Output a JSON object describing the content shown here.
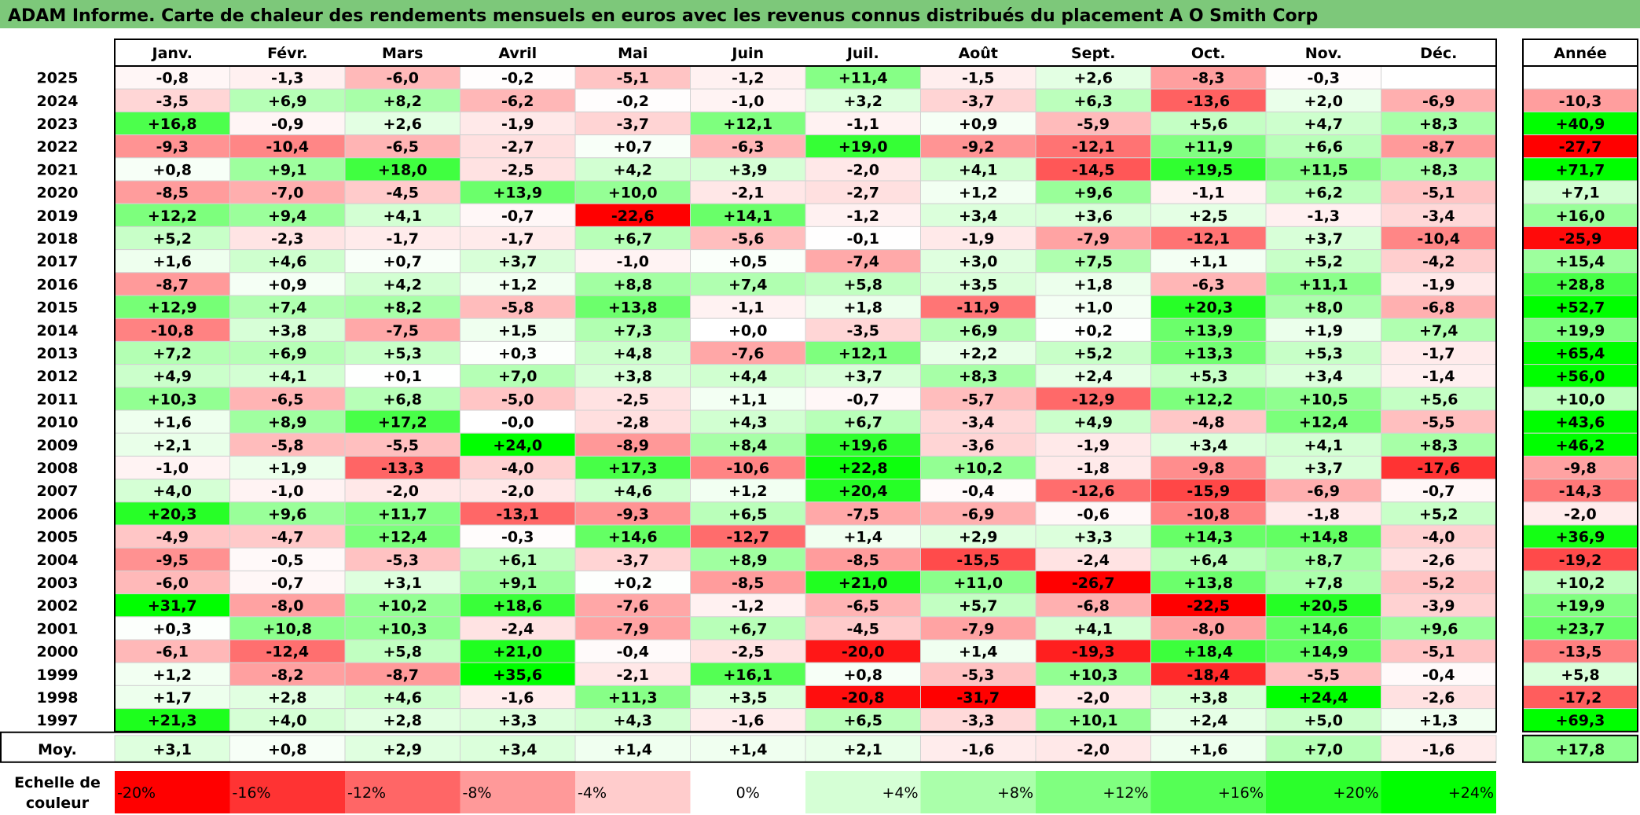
{
  "title": "ADAM Informe. Carte de chaleur des rendements mensuels en euros avec les revenus connus distribués du placement A O Smith Corp",
  "chart_data": {
    "type": "heatmap",
    "columns": [
      "Janv.",
      "Févr.",
      "Mars",
      "Avril",
      "Mai",
      "Juin",
      "Juil.",
      "Août",
      "Sept.",
      "Oct.",
      "Nov.",
      "Déc."
    ],
    "annual_label": "Année",
    "rows": [
      {
        "year": "2025",
        "values": [
          "-0,8",
          "-1,3",
          "-6,0",
          "-0,2",
          "-5,1",
          "-1,2",
          "+11,4",
          "-1,5",
          "+2,6",
          "-8,3",
          "-0,3",
          ""
        ],
        "annual": ""
      },
      {
        "year": "2024",
        "values": [
          "-3,5",
          "+6,9",
          "+8,2",
          "-6,2",
          "-0,2",
          "-1,0",
          "+3,2",
          "-3,7",
          "+6,3",
          "-13,6",
          "+2,0",
          "-6,9"
        ],
        "annual": "-10,3"
      },
      {
        "year": "2023",
        "values": [
          "+16,8",
          "-0,9",
          "+2,6",
          "-1,9",
          "-3,7",
          "+12,1",
          "-1,1",
          "+0,9",
          "-5,9",
          "+5,6",
          "+4,7",
          "+8,3"
        ],
        "annual": "+40,9"
      },
      {
        "year": "2022",
        "values": [
          "-9,3",
          "-10,4",
          "-6,5",
          "-2,7",
          "+0,7",
          "-6,3",
          "+19,0",
          "-9,2",
          "-12,1",
          "+11,9",
          "+6,6",
          "-8,7"
        ],
        "annual": "-27,7"
      },
      {
        "year": "2021",
        "values": [
          "+0,8",
          "+9,1",
          "+18,0",
          "-2,5",
          "+4,2",
          "+3,9",
          "-2,0",
          "+4,1",
          "-14,5",
          "+19,5",
          "+11,5",
          "+8,3"
        ],
        "annual": "+71,7"
      },
      {
        "year": "2020",
        "values": [
          "-8,5",
          "-7,0",
          "-4,5",
          "+13,9",
          "+10,0",
          "-2,1",
          "-2,7",
          "+1,2",
          "+9,6",
          "-1,1",
          "+6,2",
          "-5,1"
        ],
        "annual": "+7,1"
      },
      {
        "year": "2019",
        "values": [
          "+12,2",
          "+9,4",
          "+4,1",
          "-0,7",
          "-22,6",
          "+14,1",
          "-1,2",
          "+3,4",
          "+3,6",
          "+2,5",
          "-1,3",
          "-3,4"
        ],
        "annual": "+16,0"
      },
      {
        "year": "2018",
        "values": [
          "+5,2",
          "-2,3",
          "-1,7",
          "-1,7",
          "+6,7",
          "-5,6",
          "-0,1",
          "-1,9",
          "-7,9",
          "-12,1",
          "+3,7",
          "-10,4"
        ],
        "annual": "-25,9"
      },
      {
        "year": "2017",
        "values": [
          "+1,6",
          "+4,6",
          "+0,7",
          "+3,7",
          "-1,0",
          "+0,5",
          "-7,4",
          "+3,0",
          "+7,5",
          "+1,1",
          "+5,2",
          "-4,2"
        ],
        "annual": "+15,4"
      },
      {
        "year": "2016",
        "values": [
          "-8,7",
          "+0,9",
          "+4,2",
          "+1,2",
          "+8,8",
          "+7,4",
          "+5,8",
          "+3,5",
          "+1,8",
          "-6,3",
          "+11,1",
          "-1,9"
        ],
        "annual": "+28,8"
      },
      {
        "year": "2015",
        "values": [
          "+12,9",
          "+7,4",
          "+8,2",
          "-5,8",
          "+13,8",
          "-1,1",
          "+1,8",
          "-11,9",
          "+1,0",
          "+20,3",
          "+8,0",
          "-6,8"
        ],
        "annual": "+52,7"
      },
      {
        "year": "2014",
        "values": [
          "-10,8",
          "+3,8",
          "-7,5",
          "+1,5",
          "+7,3",
          "+0,0",
          "-3,5",
          "+6,9",
          "+0,2",
          "+13,9",
          "+1,9",
          "+7,4"
        ],
        "annual": "+19,9"
      },
      {
        "year": "2013",
        "values": [
          "+7,2",
          "+6,9",
          "+5,3",
          "+0,3",
          "+4,8",
          "-7,6",
          "+12,1",
          "+2,2",
          "+5,2",
          "+13,3",
          "+5,3",
          "-1,7"
        ],
        "annual": "+65,4"
      },
      {
        "year": "2012",
        "values": [
          "+4,9",
          "+4,1",
          "+0,1",
          "+7,0",
          "+3,8",
          "+4,4",
          "+3,7",
          "+8,3",
          "+2,4",
          "+5,3",
          "+3,4",
          "-1,4"
        ],
        "annual": "+56,0"
      },
      {
        "year": "2011",
        "values": [
          "+10,3",
          "-6,5",
          "+6,8",
          "-5,0",
          "-2,5",
          "+1,1",
          "-0,7",
          "-5,7",
          "-12,9",
          "+12,2",
          "+10,5",
          "+5,6"
        ],
        "annual": "+10,0"
      },
      {
        "year": "2010",
        "values": [
          "+1,6",
          "+8,9",
          "+17,2",
          "-0,0",
          "-2,8",
          "+4,3",
          "+6,7",
          "-3,4",
          "+4,9",
          "-4,8",
          "+12,4",
          "-5,5"
        ],
        "annual": "+43,6"
      },
      {
        "year": "2009",
        "values": [
          "+2,1",
          "-5,8",
          "-5,5",
          "+24,0",
          "-8,9",
          "+8,4",
          "+19,6",
          "-3,6",
          "-1,9",
          "+3,4",
          "+4,1",
          "+8,3"
        ],
        "annual": "+46,2"
      },
      {
        "year": "2008",
        "values": [
          "-1,0",
          "+1,9",
          "-13,3",
          "-4,0",
          "+17,3",
          "-10,6",
          "+22,8",
          "+10,2",
          "-1,8",
          "-9,8",
          "+3,7",
          "-17,6"
        ],
        "annual": "-9,8"
      },
      {
        "year": "2007",
        "values": [
          "+4,0",
          "-1,0",
          "-2,0",
          "-2,0",
          "+4,6",
          "+1,2",
          "+20,4",
          "-0,4",
          "-12,6",
          "-15,9",
          "-6,9",
          "-0,7"
        ],
        "annual": "-14,3"
      },
      {
        "year": "2006",
        "values": [
          "+20,3",
          "+9,6",
          "+11,7",
          "-13,1",
          "-9,3",
          "+6,5",
          "-7,5",
          "-6,9",
          "-0,6",
          "-10,8",
          "-1,8",
          "+5,2"
        ],
        "annual": "-2,0"
      },
      {
        "year": "2005",
        "values": [
          "-4,9",
          "-4,7",
          "+12,4",
          "-0,3",
          "+14,6",
          "-12,7",
          "+1,4",
          "+2,9",
          "+3,3",
          "+14,3",
          "+14,8",
          "-4,0"
        ],
        "annual": "+36,9"
      },
      {
        "year": "2004",
        "values": [
          "-9,5",
          "-0,5",
          "-5,3",
          "+6,1",
          "-3,7",
          "+8,9",
          "-8,5",
          "-15,5",
          "-2,4",
          "+6,4",
          "+8,7",
          "-2,6"
        ],
        "annual": "-19,2"
      },
      {
        "year": "2003",
        "values": [
          "-6,0",
          "-0,7",
          "+3,1",
          "+9,1",
          "+0,2",
          "-8,5",
          "+21,0",
          "+11,0",
          "-26,7",
          "+13,8",
          "+7,8",
          "-5,2"
        ],
        "annual": "+10,2"
      },
      {
        "year": "2002",
        "values": [
          "+31,7",
          "-8,0",
          "+10,2",
          "+18,6",
          "-7,6",
          "-1,2",
          "-6,5",
          "+5,7",
          "-6,8",
          "-22,5",
          "+20,5",
          "-3,9"
        ],
        "annual": "+19,9"
      },
      {
        "year": "2001",
        "values": [
          "+0,3",
          "+10,8",
          "+10,3",
          "-2,4",
          "-7,9",
          "+6,7",
          "-4,5",
          "-7,9",
          "+4,1",
          "-8,0",
          "+14,6",
          "+9,6"
        ],
        "annual": "+23,7"
      },
      {
        "year": "2000",
        "values": [
          "-6,1",
          "-12,4",
          "+5,8",
          "+21,0",
          "-0,4",
          "-2,5",
          "-20,0",
          "+1,4",
          "-19,3",
          "+18,4",
          "+14,9",
          "-5,1"
        ],
        "annual": "-13,5"
      },
      {
        "year": "1999",
        "values": [
          "+1,2",
          "-8,2",
          "-8,7",
          "+35,6",
          "-2,1",
          "+16,1",
          "+0,8",
          "-5,3",
          "+10,3",
          "-18,4",
          "-5,5",
          "-0,4"
        ],
        "annual": "+5,8"
      },
      {
        "year": "1998",
        "values": [
          "+1,7",
          "+2,8",
          "+4,6",
          "-1,6",
          "+11,3",
          "+3,5",
          "-20,8",
          "-31,7",
          "-2,0",
          "+3,8",
          "+24,4",
          "-2,6"
        ],
        "annual": "-17,2"
      },
      {
        "year": "1997",
        "values": [
          "+21,3",
          "+4,0",
          "+2,8",
          "+3,3",
          "+4,3",
          "-1,6",
          "+6,5",
          "-3,3",
          "+10,1",
          "+2,4",
          "+5,0",
          "+1,3"
        ],
        "annual": "+69,3"
      }
    ],
    "average": {
      "label": "Moy.",
      "values": [
        "+3,1",
        "+0,8",
        "+2,9",
        "+3,4",
        "+1,4",
        "+1,4",
        "+2,1",
        "-1,6",
        "-2,0",
        "+1,6",
        "+7,0",
        "-1,6"
      ],
      "annual": "+17,8"
    },
    "scale": {
      "label_line1": "Echelle de",
      "label_line2": "couleur",
      "stops": [
        "-20%",
        "-16%",
        "-12%",
        "-8%",
        "-4%",
        "0%",
        "+4%",
        "+8%",
        "+12%",
        "+16%",
        "+20%",
        "+24%"
      ],
      "stop_values": [
        -20,
        -16,
        -12,
        -8,
        -4,
        0,
        4,
        8,
        12,
        16,
        20,
        24
      ]
    },
    "colors": {
      "negative_max": "#ff0000",
      "neutral": "#ffffff",
      "positive_max": "#00ff00",
      "title_bg": "#7dc87a"
    }
  }
}
